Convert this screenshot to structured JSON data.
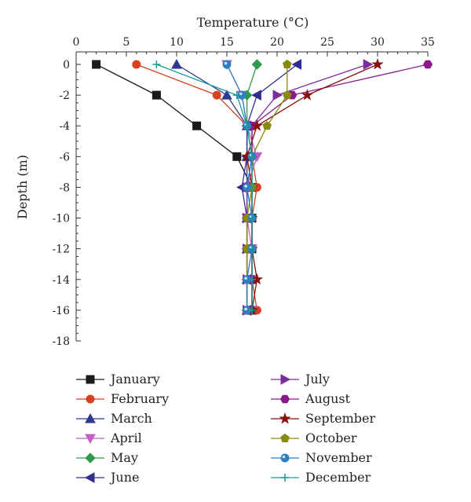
{
  "chart_data": {
    "type": "line",
    "xlabel": "Temperature (°C)",
    "ylabel": "Depth (m)",
    "xlim": [
      0,
      35
    ],
    "ylim": [
      -18,
      0
    ],
    "xticks": [
      0,
      5,
      10,
      15,
      20,
      25,
      30,
      35
    ],
    "yticks": [
      0,
      -2,
      -4,
      -6,
      -8,
      -10,
      -12,
      -14,
      -16,
      -18
    ],
    "x_axis_position": "top",
    "grid": false,
    "legend_position": "bottom",
    "depths": [
      0,
      -2,
      -4,
      -6,
      -8,
      -10,
      -12,
      -14,
      -16
    ],
    "series": [
      {
        "name": "January",
        "color": "#1a1a1a",
        "marker": "square",
        "x": [
          2,
          8,
          12,
          16,
          17.5,
          17.5,
          17.5,
          17.5,
          17.5
        ]
      },
      {
        "name": "February",
        "color": "#d9401f",
        "marker": "circle",
        "x": [
          6,
          14,
          17,
          17.5,
          18,
          17.5,
          17.5,
          17.5,
          18
        ]
      },
      {
        "name": "March",
        "color": "#2e3a8f",
        "marker": "triangle-up",
        "x": [
          10,
          15,
          17,
          17,
          17,
          17,
          17,
          17,
          17
        ]
      },
      {
        "name": "April",
        "color": "#c060c0",
        "marker": "triangle-down",
        "x": [
          15,
          16.5,
          17,
          18,
          17,
          17,
          17.5,
          17.5,
          17.5
        ]
      },
      {
        "name": "May",
        "color": "#2e9a4a",
        "marker": "diamond",
        "x": [
          18,
          17,
          17,
          17.5,
          17.5,
          17.5,
          17.5,
          17.5,
          17.5
        ]
      },
      {
        "name": "June",
        "color": "#2e2e8f",
        "marker": "triangle-left",
        "x": [
          22,
          18,
          17,
          17,
          16.5,
          17,
          17,
          17,
          17
        ]
      },
      {
        "name": "July",
        "color": "#7a2e9a",
        "marker": "triangle-right",
        "x": [
          29,
          20,
          17.5,
          17.5,
          17,
          17,
          17,
          17,
          17
        ]
      },
      {
        "name": "August",
        "color": "#8a1a8a",
        "marker": "hexagon",
        "x": [
          35,
          21.5,
          17.5,
          17.5,
          17.5,
          17.5,
          17.5,
          17.5,
          17.5
        ]
      },
      {
        "name": "September",
        "color": "#8a0f0f",
        "marker": "star",
        "x": [
          30,
          23,
          18,
          17,
          17.5,
          17.5,
          17.5,
          18,
          17.5
        ]
      },
      {
        "name": "October",
        "color": "#8a8a10",
        "marker": "pentagon",
        "x": [
          21,
          21,
          19,
          17.5,
          17.5,
          17,
          17,
          17,
          17
        ]
      },
      {
        "name": "November",
        "color": "#2f7fc0",
        "marker": "sphere",
        "x": [
          15,
          16.5,
          17,
          17.5,
          17,
          17.5,
          17.5,
          17,
          17
        ]
      },
      {
        "name": "December",
        "color": "#1a9a9a",
        "marker": "plus",
        "x": [
          8,
          16,
          17,
          17.5,
          17.5,
          17.5,
          17.5,
          17.5,
          17.5
        ]
      }
    ]
  }
}
